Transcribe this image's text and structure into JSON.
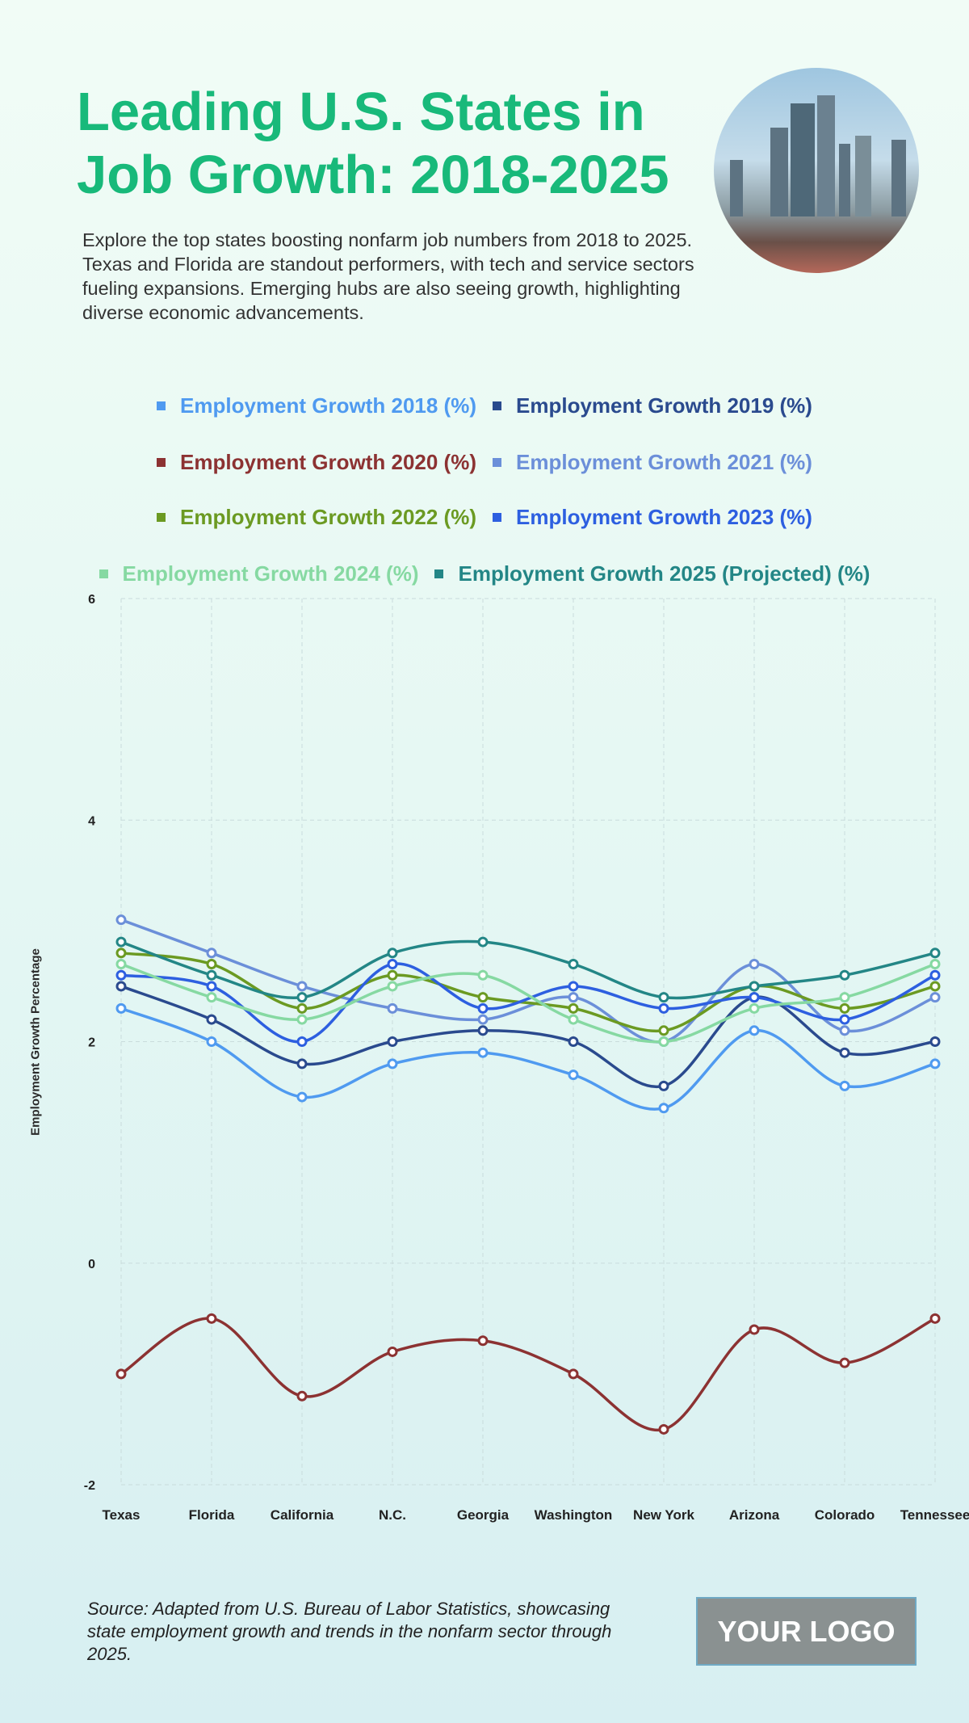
{
  "header": {
    "title": "Leading U.S. States in Job Growth: 2018-2025",
    "description": "Explore the top states boosting nonfarm job numbers from 2018 to 2025. Texas and Florida are standout performers, with tech and service sectors fueling expansions. Emerging hubs are also seeing growth, highlighting diverse economic advancements."
  },
  "footer": {
    "source": "Source: Adapted from U.S. Bureau of Labor Statistics, showcasing state employment growth and trends in the nonfarm sector through 2025.",
    "logo": "YOUR LOGO"
  },
  "chart_data": {
    "type": "line",
    "title": "",
    "xlabel": "",
    "ylabel": "Employment Growth Percentage",
    "ylim": [
      -2,
      6
    ],
    "yticks": [
      "-2",
      "0",
      "2",
      "4",
      "6"
    ],
    "grid": true,
    "legend_position": "top",
    "categories": [
      "Texas",
      "Florida",
      "California",
      "N.C.",
      "Georgia",
      "Washington",
      "New York",
      "Arizona",
      "Colorado",
      "Tennessee"
    ],
    "series": [
      {
        "name": "Employment Growth 2018 (%)",
        "color": "#4f9af0",
        "values": [
          2.3,
          2.0,
          1.5,
          1.8,
          1.9,
          1.7,
          1.4,
          2.1,
          1.6,
          1.8
        ]
      },
      {
        "name": "Employment Growth 2019 (%)",
        "color": "#2a4a8e",
        "values": [
          2.5,
          2.2,
          1.8,
          2.0,
          2.1,
          2.0,
          1.6,
          2.4,
          1.9,
          2.0
        ]
      },
      {
        "name": "Employment Growth 2020 (%)",
        "color": "#8c3232",
        "values": [
          -1.0,
          -0.5,
          -1.2,
          -0.8,
          -0.7,
          -1.0,
          -1.5,
          -0.6,
          -0.9,
          -0.5
        ]
      },
      {
        "name": "Employment Growth 2021 (%)",
        "color": "#6b8fd9",
        "values": [
          3.1,
          2.8,
          2.5,
          2.3,
          2.2,
          2.4,
          2.0,
          2.7,
          2.1,
          2.4
        ]
      },
      {
        "name": "Employment Growth 2022 (%)",
        "color": "#6b9a22",
        "values": [
          2.8,
          2.7,
          2.3,
          2.6,
          2.4,
          2.3,
          2.1,
          2.5,
          2.3,
          2.5
        ]
      },
      {
        "name": "Employment Growth 2023 (%)",
        "color": "#2d5fe0",
        "values": [
          2.6,
          2.5,
          2.0,
          2.7,
          2.3,
          2.5,
          2.3,
          2.4,
          2.2,
          2.6
        ]
      },
      {
        "name": "Employment Growth 2024 (%)",
        "color": "#86d9a2",
        "values": [
          2.7,
          2.4,
          2.2,
          2.5,
          2.6,
          2.2,
          2.0,
          2.3,
          2.4,
          2.7
        ]
      },
      {
        "name": "Employment Growth 2025 (Projected) (%)",
        "color": "#238686",
        "values": [
          2.9,
          2.6,
          2.4,
          2.8,
          2.9,
          2.7,
          2.4,
          2.5,
          2.6,
          2.8
        ]
      }
    ]
  }
}
